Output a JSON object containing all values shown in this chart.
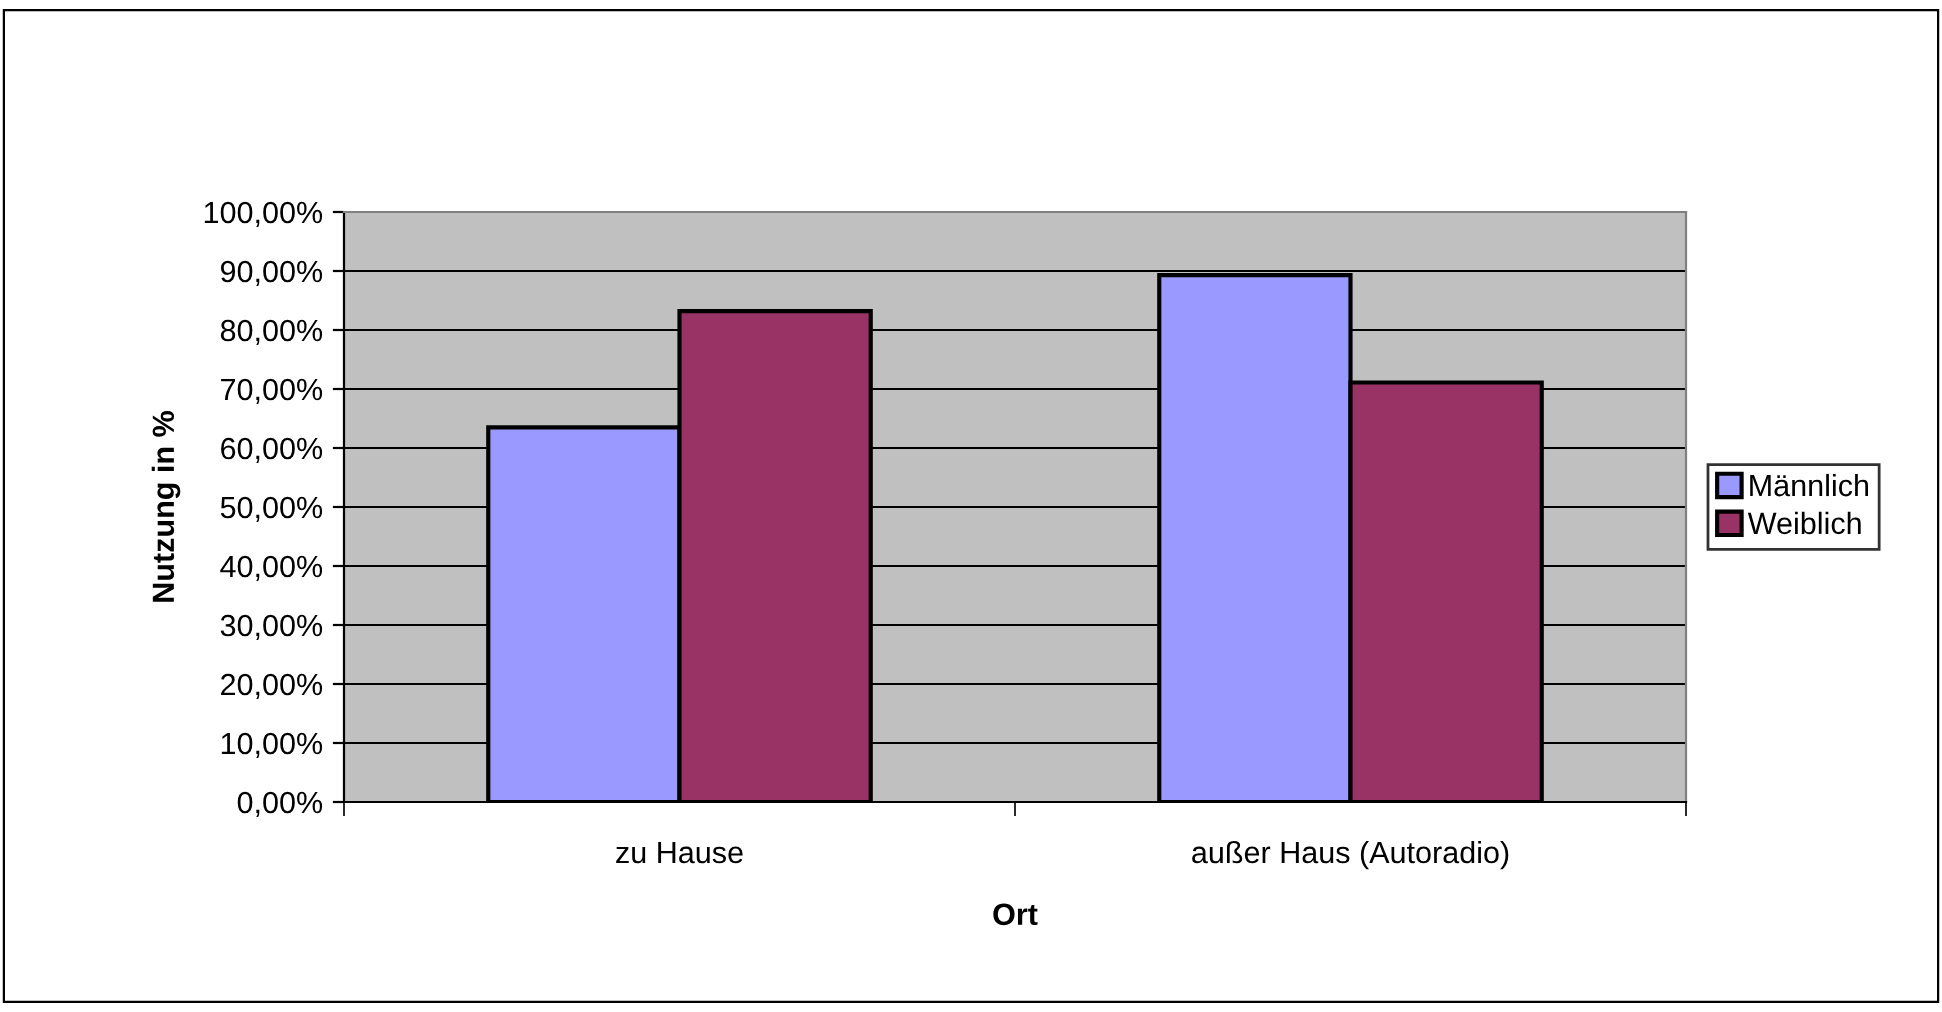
{
  "chart_data": {
    "type": "bar",
    "xlabel": "Ort",
    "ylabel": "Nutzung in %",
    "categories": [
      "zu Hause",
      "außer Haus (Autoradio)"
    ],
    "series": [
      {
        "name": "Männlich",
        "color": "#9999ff",
        "values": [
          63.5,
          89.3
        ]
      },
      {
        "name": "Weiblich",
        "color": "#993366",
        "values": [
          83.2,
          71.1
        ]
      }
    ],
    "ylim": [
      0,
      100
    ],
    "yticks": [
      {
        "value": 0,
        "label": "0,00%"
      },
      {
        "value": 10,
        "label": "10,00%"
      },
      {
        "value": 20,
        "label": "20,00%"
      },
      {
        "value": 30,
        "label": "30,00%"
      },
      {
        "value": 40,
        "label": "40,00%"
      },
      {
        "value": 50,
        "label": "50,00%"
      },
      {
        "value": 60,
        "label": "60,00%"
      },
      {
        "value": 70,
        "label": "70,00%"
      },
      {
        "value": 80,
        "label": "80,00%"
      },
      {
        "value": 90,
        "label": "90,00%"
      },
      {
        "value": 100,
        "label": "100,00%"
      }
    ],
    "grid": "y",
    "legend": "right"
  }
}
